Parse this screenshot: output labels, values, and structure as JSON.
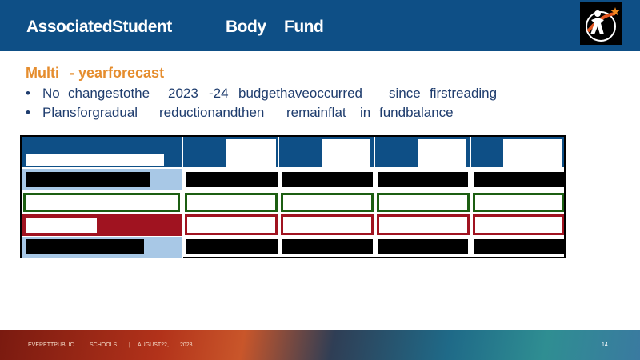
{
  "header": {
    "title_words": [
      "AssociatedStudent",
      "Body",
      "Fund"
    ]
  },
  "content": {
    "subtitle_parts": [
      "Multi",
      "- yearforecast"
    ],
    "bullets": [
      {
        "bullet": "•",
        "words": [
          "No",
          "changestothe",
          "2023",
          "-24",
          "budgethaveoccurred",
          "since",
          "firstreading"
        ]
      },
      {
        "bullet": "•",
        "words": [
          "Plansforgradual",
          "reductionandthen",
          "remainflat",
          "in",
          "fundbalance"
        ]
      }
    ]
  },
  "footer": {
    "items": [
      "EVERETTPUBLIC",
      "SCHOOLS",
      "|",
      "AUGUST22,",
      "2023"
    ],
    "page_number": "14"
  },
  "colors": {
    "header_blue": "#0e4f86",
    "accent_orange": "#e58d2e",
    "row_green": "#1c5e12",
    "row_red": "#a01320",
    "light_blue": "#a8c8e6"
  },
  "icons": {
    "logo": "school-logo-icon"
  }
}
